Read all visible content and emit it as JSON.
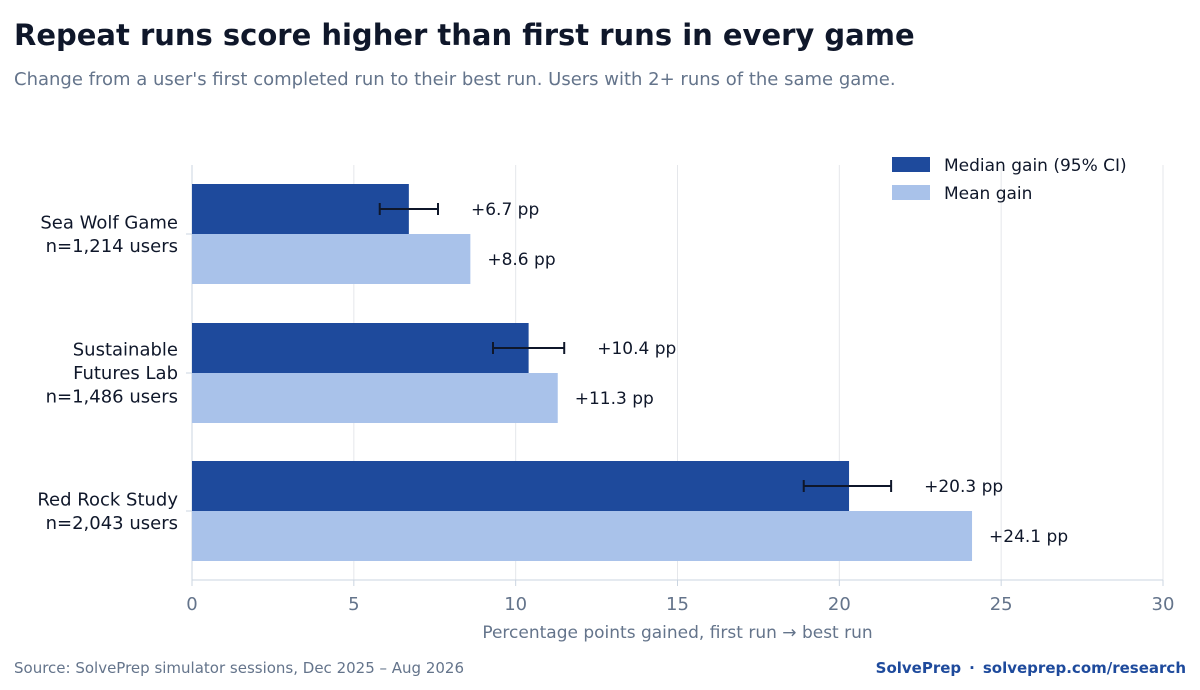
{
  "header": {
    "title": "Repeat runs score higher than first runs in every game",
    "subtitle": "Change from a user's first completed run to their best run. Users with 2+ runs of the same game."
  },
  "footer": {
    "source": "Source: SolvePrep simulator sessions, Dec 2025 – Aug 2026",
    "brand": "SolvePrep",
    "separator": "·",
    "link": "solveprep.com/research"
  },
  "colors": {
    "median": "#1e4a9c",
    "mean": "#a9c2ea",
    "grid": "#e5e7eb",
    "axis": "#cbd5e1",
    "tick_text": "#64748b",
    "label_text": "#0f172a"
  },
  "chart_data": {
    "type": "bar",
    "orientation": "horizontal",
    "categories": [
      {
        "name": "Sea Wolf Game",
        "lines": [
          "Sea Wolf Game"
        ],
        "n": "n=1,214 users"
      },
      {
        "name": "Sustainable Futures Lab",
        "lines": [
          "Sustainable",
          "Futures Lab"
        ],
        "n": "n=1,486 users"
      },
      {
        "name": "Red Rock Study",
        "lines": [
          "Red Rock Study"
        ],
        "n": "n=2,043 users"
      }
    ],
    "series": [
      {
        "name": "Median gain (95% CI)",
        "values": [
          6.7,
          10.4,
          20.3
        ],
        "ci_low": [
          5.8,
          9.3,
          18.9
        ],
        "ci_high": [
          7.6,
          11.5,
          21.6
        ],
        "labels": [
          "+6.7 pp",
          "+10.4 pp",
          "+20.3 pp"
        ]
      },
      {
        "name": "Mean gain",
        "values": [
          8.6,
          11.3,
          24.1
        ],
        "labels": [
          "+8.6 pp",
          "+11.3 pp",
          "+24.1 pp"
        ]
      }
    ],
    "xlabel": "Percentage points gained, first run → best run",
    "xlim": [
      0,
      30
    ],
    "xticks": [
      0,
      5,
      10,
      15,
      20,
      25,
      30
    ],
    "grid": "vertical",
    "legend": "top-right"
  }
}
